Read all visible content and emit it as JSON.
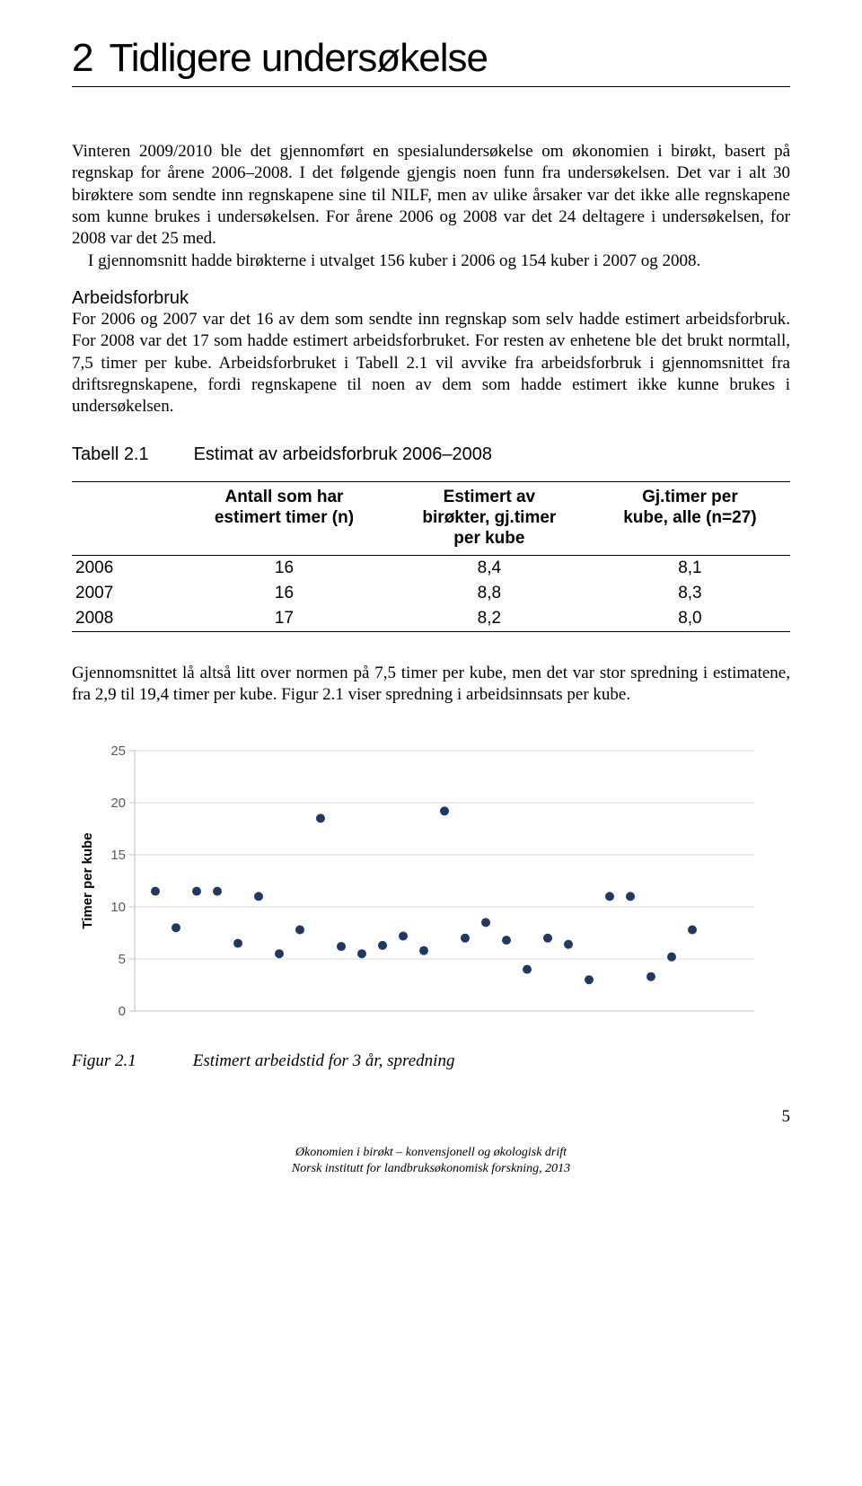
{
  "chapter": {
    "num": "2",
    "title": "Tidligere undersøkelse"
  },
  "para1": "Vinteren 2009/2010 ble det gjennomført en spesialundersøkelse om økonomien i birøkt, basert på regnskap for årene 2006–2008. I det følgende gjengis noen funn fra undersøkelsen. Det var i alt 30 birøktere som sendte inn regnskapene sine til NILF, men av ulike årsaker var det ikke alle regnskapene som kunne brukes i undersøkelsen. For årene 2006 og 2008 var det 24 deltagere i undersøkelsen, for 2008 var det 25 med.",
  "para1b": "I gjennomsnitt hadde birøkterne i utvalget 156 kuber i 2006 og 154 kuber i 2007 og 2008.",
  "subhead1": "Arbeidsforbruk",
  "para2": "For 2006 og 2007 var det 16 av dem som sendte inn regnskap som selv hadde estimert arbeidsforbruk. For 2008 var det 17 som hadde estimert arbeidsforbruket. For resten av enhetene ble det brukt normtall, 7,5 timer per kube. Arbeidsforbruket i Tabell 2.1 vil avvike fra arbeidsforbruk i gjennomsnittet fra driftsregnskapene, fordi regnskapene til noen av dem som hadde estimert ikke kunne brukes i undersøkelsen.",
  "table": {
    "label": "Tabell 2.1",
    "title": "Estimat av arbeidsforbruk 2006–2008",
    "head": [
      "",
      "Antall som har estimert timer (n)",
      "Estimert av birøkter, gj.timer per kube",
      "Gj.timer per kube, alle (n=27)"
    ],
    "rows": [
      [
        "2006",
        "16",
        "8,4",
        "8,1"
      ],
      [
        "2007",
        "16",
        "8,8",
        "8,3"
      ],
      [
        "2008",
        "17",
        "8,2",
        "8,0"
      ]
    ]
  },
  "para3": "Gjennomsnittet lå altså litt over normen på 7,5 timer per kube, men det var stor spredning i estimatene, fra 2,9 til 19,4 timer per kube. Figur 2.1 viser spredning i arbeidsinnsats per kube.",
  "chart": {
    "type": "scatter",
    "ylabel": "Timer per kube",
    "ylim": [
      0,
      25
    ],
    "ytick_step": 5,
    "xlim": [
      0,
      30
    ],
    "plot_bg": "#ffffff",
    "grid_color": "#d9d9d9",
    "axis_color": "#bfbfbf",
    "tick_label_color": "#595959",
    "tick_fontsize": 15,
    "marker_color": "#1f3864",
    "marker_radius": 5,
    "points": [
      {
        "x": 1,
        "y": 11.5
      },
      {
        "x": 2,
        "y": 8.0
      },
      {
        "x": 3,
        "y": 11.5
      },
      {
        "x": 4,
        "y": 11.5
      },
      {
        "x": 5,
        "y": 6.5
      },
      {
        "x": 6,
        "y": 11.0
      },
      {
        "x": 7,
        "y": 5.5
      },
      {
        "x": 8,
        "y": 7.8
      },
      {
        "x": 9,
        "y": 18.5
      },
      {
        "x": 10,
        "y": 6.2
      },
      {
        "x": 11,
        "y": 5.5
      },
      {
        "x": 12,
        "y": 6.3
      },
      {
        "x": 13,
        "y": 7.2
      },
      {
        "x": 14,
        "y": 5.8
      },
      {
        "x": 15,
        "y": 19.2
      },
      {
        "x": 16,
        "y": 7.0
      },
      {
        "x": 17,
        "y": 8.5
      },
      {
        "x": 18,
        "y": 6.8
      },
      {
        "x": 19,
        "y": 4.0
      },
      {
        "x": 20,
        "y": 7.0
      },
      {
        "x": 21,
        "y": 6.4
      },
      {
        "x": 22,
        "y": 3.0
      },
      {
        "x": 23,
        "y": 11.0
      },
      {
        "x": 24,
        "y": 11.0
      },
      {
        "x": 25,
        "y": 3.3
      },
      {
        "x": 26,
        "y": 5.2
      },
      {
        "x": 27,
        "y": 7.8
      }
    ]
  },
  "figure": {
    "label": "Figur 2.1",
    "title": "Estimert arbeidstid for 3 år, spredning"
  },
  "page_number": "5",
  "footer_line1": "Økonomien i birøkt – konvensjonell og økologisk drift",
  "footer_line2": "Norsk institutt for landbruksøkonomisk forskning, 2013"
}
